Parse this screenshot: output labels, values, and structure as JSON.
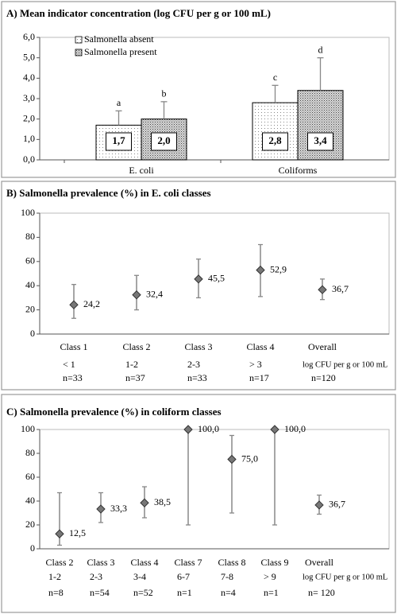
{
  "chart_data": [
    {
      "type": "bar",
      "title": "A) Mean indicator concentration (log CFU per g or 100 mL)",
      "categories": [
        "E. coli",
        "Coliforms"
      ],
      "series": [
        {
          "name": "Salmonella absent",
          "color": "#ffffff",
          "values": [
            1.7,
            2.8
          ],
          "value_labels": [
            "1,7",
            "2,8"
          ],
          "errors": [
            0.7,
            0.85
          ],
          "letters": [
            "a",
            "c"
          ]
        },
        {
          "name": "Salmonella present",
          "color": "#bdbdbd",
          "values": [
            2.0,
            3.4
          ],
          "value_labels": [
            "2,0",
            "3,4"
          ],
          "errors": [
            0.85,
            1.6
          ],
          "letters": [
            "b",
            "d"
          ]
        }
      ],
      "ylim": [
        0,
        6
      ],
      "yticks": [
        {
          "value": 0,
          "label": "0,0"
        },
        {
          "value": 1,
          "label": "1,0"
        },
        {
          "value": 2,
          "label": "2,0"
        },
        {
          "value": 3,
          "label": "3,0"
        },
        {
          "value": 4,
          "label": "4,0"
        },
        {
          "value": 5,
          "label": "5,0"
        },
        {
          "value": 6,
          "label": "6,0"
        }
      ],
      "legend": "upper left"
    },
    {
      "type": "scatter",
      "title": "B) Salmonella prevalence (%) in E. coli classes",
      "categories": [
        "Class 1",
        "Class 2",
        "Class 3",
        "Class 4",
        "Overall"
      ],
      "ranges": [
        "< 1",
        "1-2",
        "2-3",
        "> 3",
        null
      ],
      "counts": [
        "n=33",
        "n=37",
        "n=33",
        "n=17",
        "n=120"
      ],
      "x_unit_label": "log CFU per g or 100 mL",
      "values": [
        24.2,
        32.4,
        45.5,
        52.9,
        36.7
      ],
      "value_labels": [
        "24,2",
        "32,4",
        "45,5",
        "52,9",
        "36,7"
      ],
      "lower": [
        13,
        20,
        30,
        31,
        28.5
      ],
      "upper": [
        41,
        48.5,
        62,
        74,
        45.5
      ],
      "color": "#777777",
      "ylim": [
        0,
        100
      ],
      "yticks": [
        0,
        20,
        40,
        60,
        80,
        100
      ]
    },
    {
      "type": "scatter",
      "title": "C) Salmonella prevalence (%) in coliform classes",
      "categories": [
        "Class 2",
        "Class 3",
        "Class 4",
        "Class 7",
        "Class 8",
        "Class 9",
        "Overall"
      ],
      "ranges": [
        "1-2",
        "2-3",
        "3-4",
        "6-7",
        "7-8",
        "> 9",
        null
      ],
      "counts": [
        "n=8",
        "n=54",
        "n=52",
        "n=1",
        "n=4",
        "n=1",
        "n= 120"
      ],
      "x_unit_label": "log CFU per g or 100 mL",
      "values": [
        12.5,
        33.3,
        38.5,
        100,
        75,
        100,
        36.7
      ],
      "value_labels": [
        "12,5",
        "33,3",
        "38,5",
        "100,0",
        "75,0",
        "100,0",
        "36,7"
      ],
      "lower": [
        3,
        22,
        26,
        20,
        30,
        20,
        29
      ],
      "upper": [
        47,
        47,
        52,
        100,
        95,
        100,
        45
      ],
      "color": "#777777",
      "ylim": [
        0,
        100
      ],
      "yticks": [
        0,
        20,
        40,
        60,
        80,
        100
      ]
    }
  ]
}
